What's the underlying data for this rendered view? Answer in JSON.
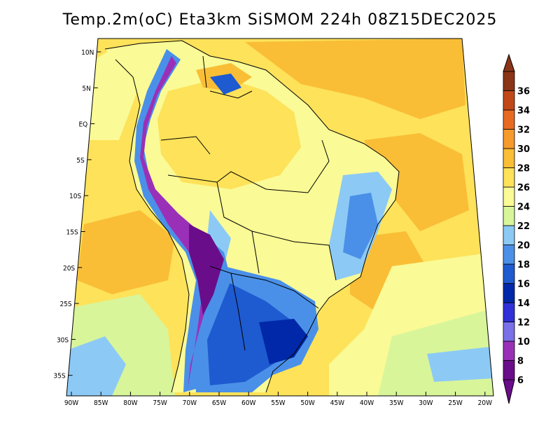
{
  "title": "Temp.2m(oC) Eta3km SiSMOM 224h 08Z15DEC2025",
  "lat_labels": [
    "10N",
    "5N",
    "EQ",
    "5S",
    "10S",
    "15S",
    "20S",
    "25S",
    "30S",
    "35S"
  ],
  "lon_labels": [
    "90W",
    "85W",
    "80W",
    "75W",
    "70W",
    "65W",
    "60W",
    "55W",
    "50W",
    "45W",
    "40W",
    "35W",
    "30W",
    "25W",
    "20W"
  ],
  "colorbar": {
    "labels": [
      "6",
      "8",
      "10",
      "12",
      "14",
      "16",
      "18",
      "20",
      "22",
      "24",
      "26",
      "28",
      "30",
      "32",
      "34",
      "36"
    ],
    "colors": [
      "#6a0d8a",
      "#9a30b8",
      "#7a70e8",
      "#3030d8",
      "#0028a8",
      "#1e5ad0",
      "#4a90e8",
      "#8ccaf5",
      "#d8f59a",
      "#fafa96",
      "#fde25a",
      "#f9be36",
      "#f79a2c",
      "#e86a20",
      "#c04818",
      "#8a3418"
    ]
  }
}
